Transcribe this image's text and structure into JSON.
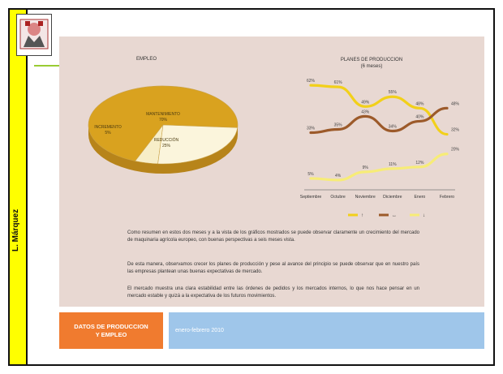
{
  "sidebar": {
    "author": "L. Márquez"
  },
  "footer": {
    "title_line1": "DATOS DE PRODUCCION",
    "title_line2": "Y EMPLEO",
    "date": "enero-febrero 2010"
  },
  "body_text": {
    "p1": "Como resumen en estos dos meses y a la vista de los gráficos mostrados se puede observar claramente un crecimiento del mercado de maquinaria agrícola europeo, con buenas perspectivas a seis meses vista.",
    "p2": "De esta manera, observamos crecer los planes de producción y pese al avance del principio se puede observar que en nuestro país las empresas plantean unas buenas expectativas de mercado.",
    "p3": "El mercado muestra una clara estabilidad entre las órdenes de pedidos y los mercados internos, lo que nos hace pensar en un mercado estable y quizá a la expectativa de los futuros movimientos."
  },
  "chart_data": [
    {
      "type": "pie",
      "title": "EMPLEO",
      "slices": [
        {
          "label": "MANTENIMIENTO",
          "value": 70,
          "value_label": "70%",
          "color": "#d9a21f"
        },
        {
          "label": "INCREMENTO",
          "value": 5,
          "value_label": "5%",
          "color": "#f7eec8"
        },
        {
          "label": "REDUCCIÓN",
          "value": 25,
          "value_label": "25%",
          "color": "#fbf5dc"
        }
      ]
    },
    {
      "type": "line",
      "title": "PLANES DE PRODUCCION",
      "subtitle": "(6 meses)",
      "categories": [
        "Septiembre",
        "Octubre",
        "Noviembre",
        "Diciembre",
        "Enero",
        "Febrero"
      ],
      "ylim": [
        0,
        70
      ],
      "series": [
        {
          "name": "↑",
          "color": "#f2d01a",
          "values": [
            62,
            61,
            49,
            55,
            48,
            32
          ],
          "labels": [
            "62%",
            "61%",
            "49%",
            "55%",
            "48%",
            "32%"
          ]
        },
        {
          "name": "↔",
          "color": "#9c5a2a",
          "values": [
            33,
            35,
            43,
            34,
            40,
            48
          ],
          "labels": [
            "33%",
            "35%",
            "43%",
            "34%",
            "40%",
            "48%"
          ]
        },
        {
          "name": "↓",
          "color": "#f7ec77",
          "values": [
            5,
            4,
            9,
            11,
            12,
            20
          ],
          "labels": [
            "5%",
            "4%",
            "9%",
            "11%",
            "12%",
            "20%"
          ]
        }
      ]
    }
  ]
}
